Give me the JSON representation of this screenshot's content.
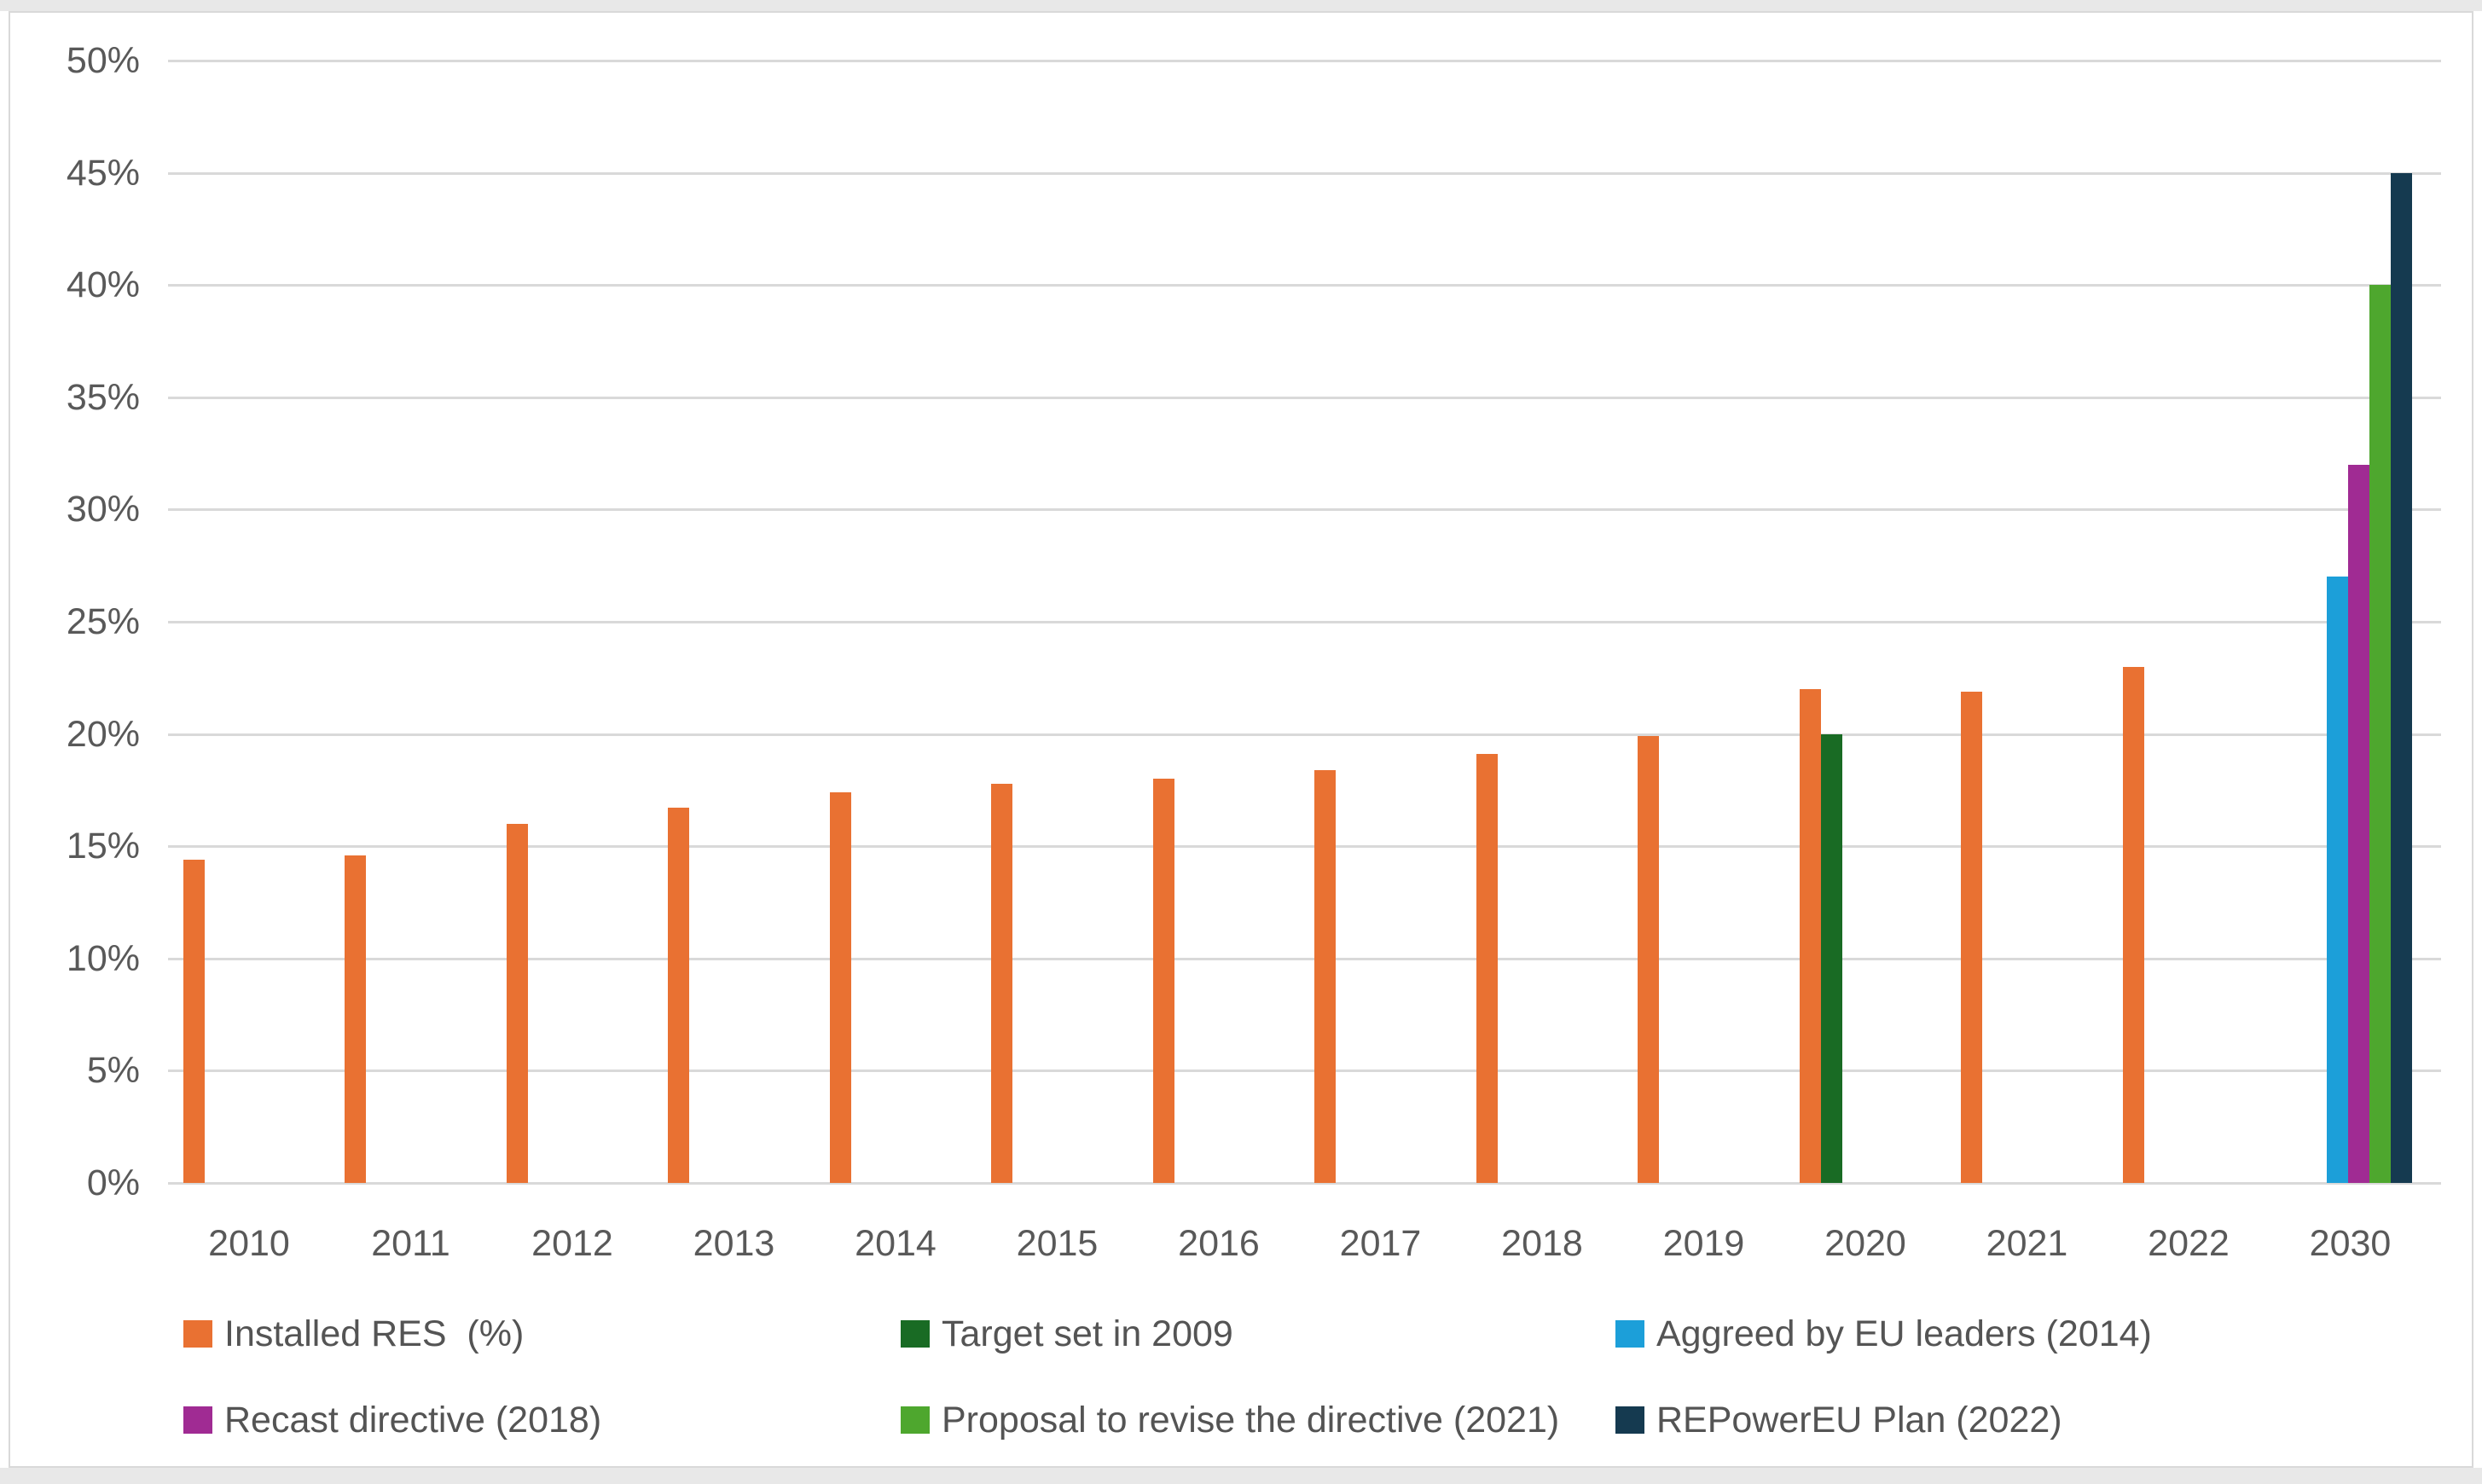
{
  "chart_data": {
    "type": "bar",
    "title": "",
    "xlabel": "",
    "ylabel": "",
    "categories": [
      "2010",
      "2011",
      "2012",
      "2013",
      "2014",
      "2015",
      "2016",
      "2017",
      "2018",
      "2019",
      "2020",
      "2021",
      "2022",
      "2030"
    ],
    "y_ticks": [
      "0%",
      "5%",
      "10%",
      "15%",
      "20%",
      "25%",
      "30%",
      "35%",
      "40%",
      "45%",
      "50%"
    ],
    "ylim": [
      0,
      50
    ],
    "grid": "horizontal",
    "legend_position": "bottom",
    "series": [
      {
        "name": "Installed RES  (%)",
        "color": "#E97132",
        "values": [
          14.4,
          14.6,
          16.0,
          16.7,
          17.4,
          17.8,
          18.0,
          18.4,
          19.1,
          19.9,
          22.0,
          21.9,
          23.0,
          null
        ]
      },
      {
        "name": "Target set in 2009",
        "color": "#196B24",
        "values": [
          null,
          null,
          null,
          null,
          null,
          null,
          null,
          null,
          null,
          null,
          20,
          null,
          null,
          null
        ]
      },
      {
        "name": "Aggreed by EU leaders (2014)",
        "color": "#1C9FD9",
        "values": [
          null,
          null,
          null,
          null,
          null,
          null,
          null,
          null,
          null,
          null,
          null,
          null,
          null,
          27
        ]
      },
      {
        "name": "Recast directive (2018)",
        "color": "#A02B93",
        "values": [
          null,
          null,
          null,
          null,
          null,
          null,
          null,
          null,
          null,
          null,
          null,
          null,
          null,
          32
        ]
      },
      {
        "name": "Proposal to revise the directive (2021)",
        "color": "#4EA72E",
        "values": [
          null,
          null,
          null,
          null,
          null,
          null,
          null,
          null,
          null,
          null,
          null,
          null,
          null,
          40
        ]
      },
      {
        "name": "REPowerEU Plan (2022)",
        "color": "#153A50",
        "values": [
          null,
          null,
          null,
          null,
          null,
          null,
          null,
          null,
          null,
          null,
          null,
          null,
          null,
          45
        ]
      }
    ]
  },
  "colors": {
    "page_edge": "#E8E8E8",
    "frame_border": "#D9D9D9",
    "gridline": "#D9D9D9",
    "axis_text": "#595959",
    "legend_text": "#545454",
    "background": "#FFFFFF"
  }
}
